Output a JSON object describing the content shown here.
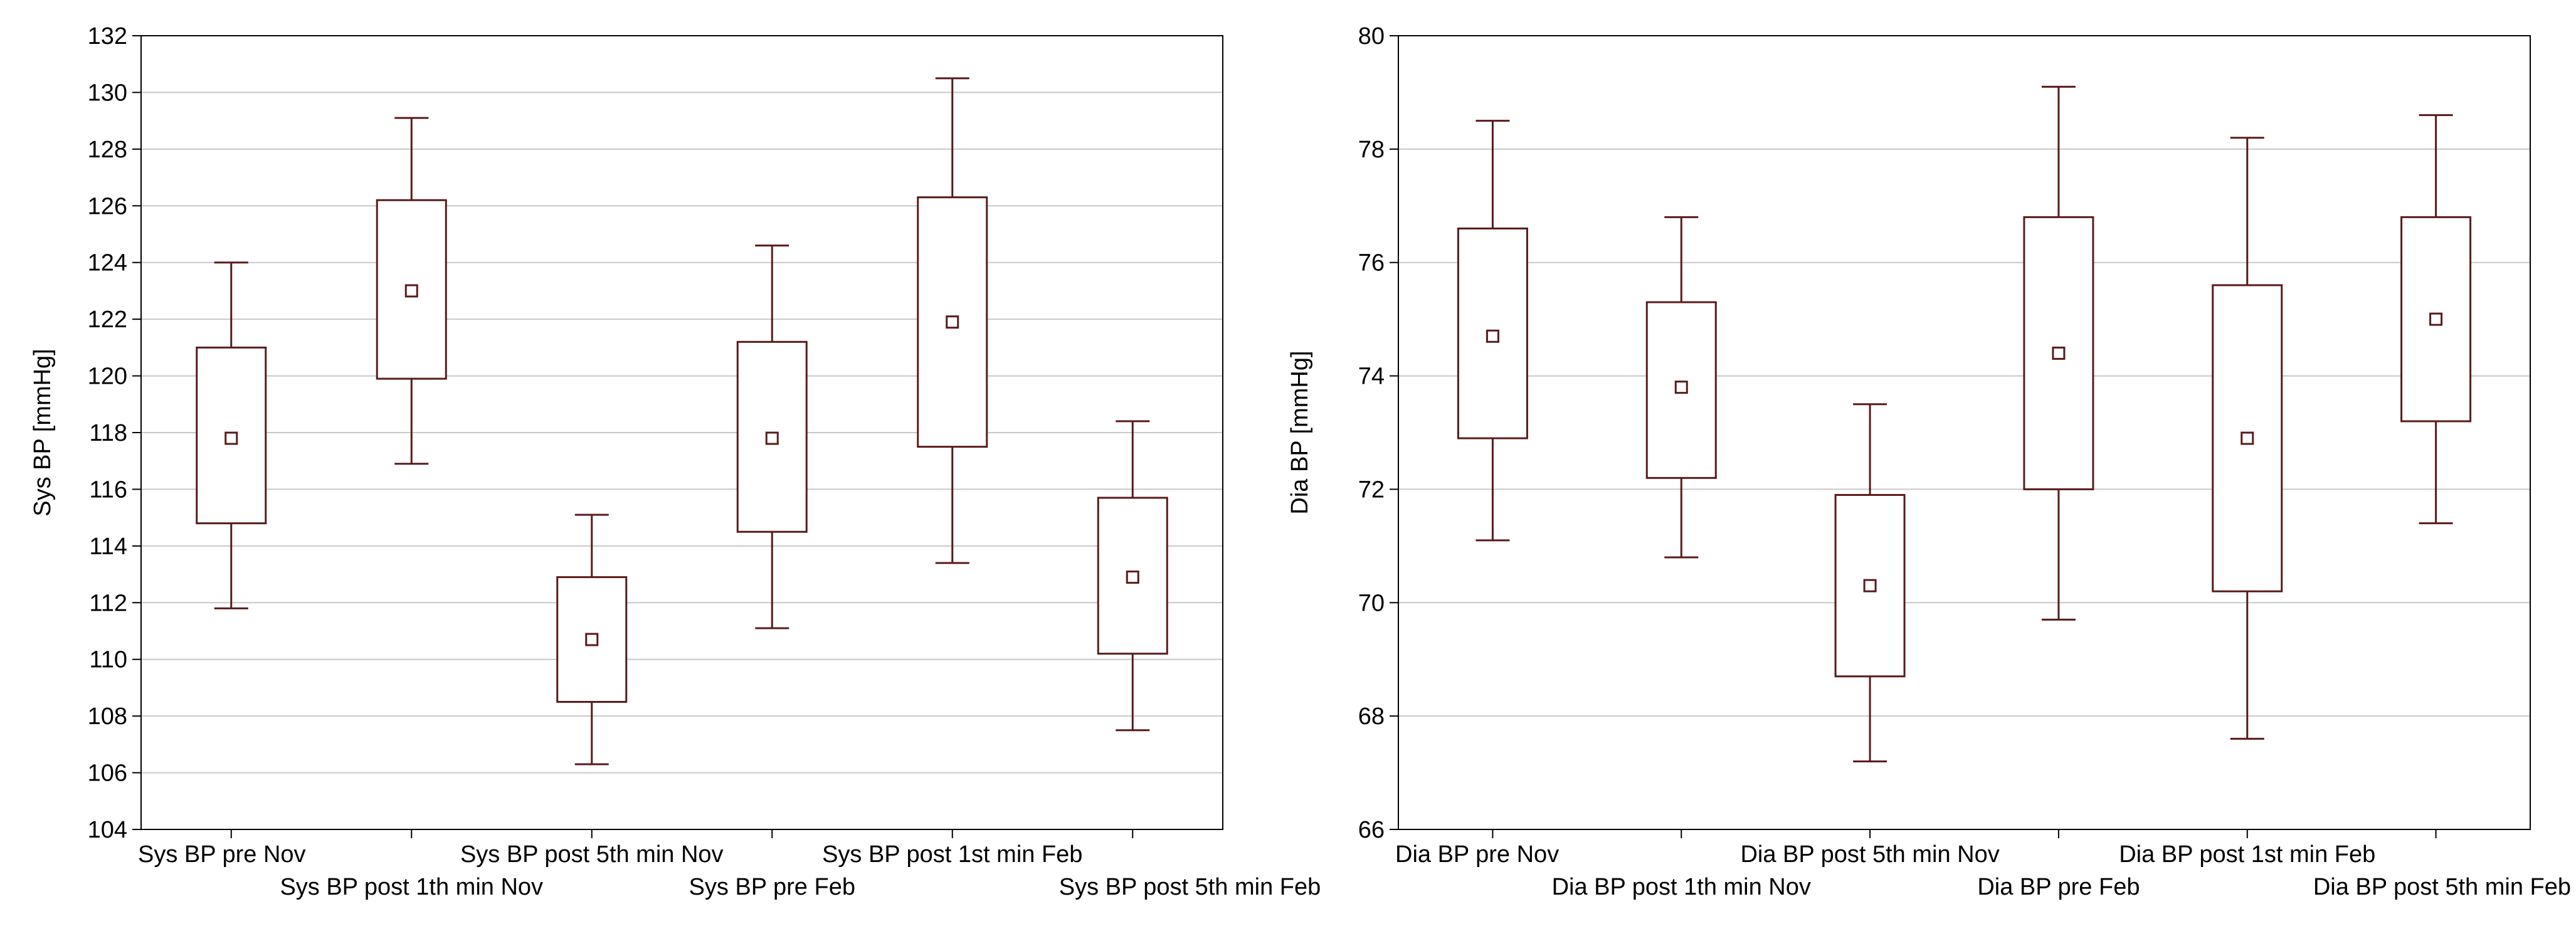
{
  "colors": {
    "box": "#5a1a1a",
    "grid": "#c8c8c8",
    "frame": "#000000",
    "background": "#ffffff"
  },
  "chart_data": [
    {
      "type": "boxplot",
      "ylabel": "Sys BP [mmHg]",
      "ylim": [
        104,
        132
      ],
      "yticks": [
        104,
        106,
        108,
        110,
        112,
        114,
        116,
        118,
        120,
        122,
        124,
        126,
        128,
        130,
        132
      ],
      "grid": true,
      "categories": [
        "Sys BP pre Nov",
        "Sys BP post 1th min Nov",
        "Sys BP post 5th min Nov",
        "Sys BP pre Feb",
        "Sys BP post 1st min Feb",
        "Sys BP post 5th min Feb"
      ],
      "boxes": [
        {
          "whisker_low": 111.8,
          "q1": 114.8,
          "median": 117.8,
          "q3": 121.0,
          "whisker_high": 124.0
        },
        {
          "whisker_low": 116.9,
          "q1": 119.9,
          "median": 123.0,
          "q3": 126.2,
          "whisker_high": 129.1
        },
        {
          "whisker_low": 106.3,
          "q1": 108.5,
          "median": 110.7,
          "q3": 112.9,
          "whisker_high": 115.1
        },
        {
          "whisker_low": 111.1,
          "q1": 114.5,
          "median": 117.8,
          "q3": 121.2,
          "whisker_high": 124.6
        },
        {
          "whisker_low": 113.4,
          "q1": 117.5,
          "median": 121.9,
          "q3": 126.3,
          "whisker_high": 130.5
        },
        {
          "whisker_low": 107.5,
          "q1": 110.2,
          "median": 112.9,
          "q3": 115.7,
          "whisker_high": 118.4
        }
      ]
    },
    {
      "type": "boxplot",
      "ylabel": "Dia BP [mmHg]",
      "ylim": [
        66,
        80
      ],
      "yticks": [
        66,
        68,
        70,
        72,
        74,
        76,
        78,
        80
      ],
      "grid": true,
      "categories": [
        "Dia BP pre Nov",
        "Dia BP post 1th min Nov",
        "Dia BP post 5th min Nov",
        "Dia BP pre Feb",
        "Dia BP post 1st min Feb",
        "Dia BP post 5th min Feb"
      ],
      "boxes": [
        {
          "whisker_low": 71.1,
          "q1": 72.9,
          "median": 74.7,
          "q3": 76.6,
          "whisker_high": 78.5
        },
        {
          "whisker_low": 70.8,
          "q1": 72.2,
          "median": 73.8,
          "q3": 75.3,
          "whisker_high": 76.8
        },
        {
          "whisker_low": 67.2,
          "q1": 68.7,
          "median": 70.3,
          "q3": 71.9,
          "whisker_high": 73.5
        },
        {
          "whisker_low": 69.7,
          "q1": 72.0,
          "median": 74.4,
          "q3": 76.8,
          "whisker_high": 79.1
        },
        {
          "whisker_low": 67.6,
          "q1": 70.2,
          "median": 72.9,
          "q3": 75.6,
          "whisker_high": 78.2
        },
        {
          "whisker_low": 71.4,
          "q1": 73.2,
          "median": 75.0,
          "q3": 76.8,
          "whisker_high": 78.6
        }
      ]
    }
  ]
}
